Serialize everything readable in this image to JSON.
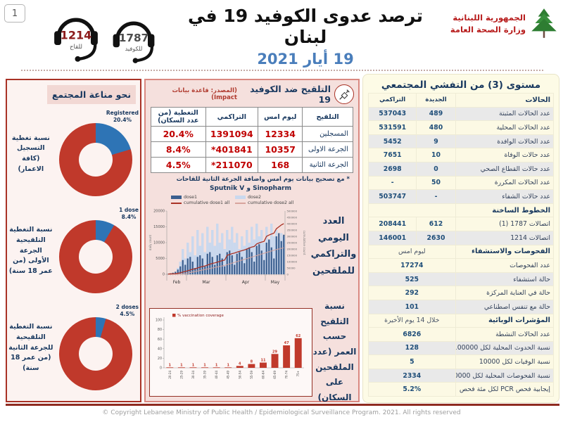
{
  "page": {
    "number": "1",
    "footer": "© Copyright Lebanese Ministry of Public Health / Epidemiological Surveillance Program. 2021. All rights reserved"
  },
  "header": {
    "title": "ترصد عدوى الكوفيد 19 في لبنان",
    "date": "19 أيار 2021",
    "hotline_vaccine": {
      "number": "1214",
      "label": "للقاح"
    },
    "hotline_covid": {
      "number": "1787",
      "label": "للكوفيد"
    },
    "ministry": {
      "line1": "الجمهورية اللبنانية",
      "line2": "وزارة الصحة العامة"
    }
  },
  "immunity_panel": {
    "title": "نحو مناعة المجتمع"
  },
  "vaccination": {
    "title": "التلقيح ضد الكوفيد 19",
    "source": "(المصدر: قاعدة بيانات Impact)",
    "table": {
      "headers": [
        "التلقيح",
        "ليوم امس",
        "التراكمي",
        "التغطية (من عدد السكان)"
      ],
      "rows": [
        {
          "label": "المسجلين",
          "yesterday": "12334",
          "cumulative": "1391094",
          "coverage": "20.4%"
        },
        {
          "label": "الجرعة الاولى",
          "yesterday": "10357",
          "cumulative": "401841*",
          "coverage": "8.4%"
        },
        {
          "label": "الجرعة الثانية",
          "yesterday": "168",
          "cumulative": "211070*",
          "coverage": "4.5%"
        }
      ]
    },
    "footnote_ar": "* مع تصحيح بيانات يوم امس واضافة الجرعة الثانية للقاحات",
    "footnote_en": "Sputnik V و Sinopharm"
  },
  "right_panel": {
    "title": "مستوى (3) من التفشي المجتمعي",
    "col_headers": {
      "label": "الحالات",
      "new": "الجديدة",
      "cumulative": "التراكمي"
    },
    "sections": [
      {
        "rows": [
          {
            "label": "عدد الحالات المثبتة",
            "new": "489",
            "cum": "537043"
          },
          {
            "label": "عدد الحالات المحلية",
            "new": "480",
            "cum": "531591"
          },
          {
            "label": "عدد الحالات الوافدة",
            "new": "9",
            "cum": "5452"
          },
          {
            "label": "عدد حالات الوفاة",
            "new": "10",
            "cum": "7651"
          },
          {
            "label": "عدد حالات القطاع الصحي",
            "new": "0",
            "cum": "2698"
          },
          {
            "label": "عدد الحالات المكررة",
            "new": "50",
            "cum": "-"
          },
          {
            "label": "عدد حالات الشفاء",
            "new": "-",
            "cum": "503747"
          }
        ]
      },
      {
        "header": "الخطوط الساخنة",
        "rows": [
          {
            "label": "اتصالات 1787 (1)",
            "new": "612",
            "cum": "208441"
          },
          {
            "label": "اتصالات 1214",
            "new": "2630",
            "cum": "146001"
          }
        ]
      },
      {
        "header": "الفحوصات والاستشفاء",
        "subheader": "ليوم امس",
        "rows": [
          {
            "label": "عدد الفحوصات",
            "value": "17274"
          },
          {
            "label": "حالة استشفاء",
            "value": "525"
          },
          {
            "label": "حالة في العناية المركزة",
            "value": "292"
          },
          {
            "label": "حالة مع تنفس اصطناعي",
            "value": "101"
          }
        ]
      },
      {
        "header": "المؤشرات الوبائية",
        "subheader": "خلال 14 يوم الأخيرة",
        "rows": [
          {
            "label": "عدد الحالات النشطة",
            "value": "6826"
          },
          {
            "label": "نسبة الحدوث المحلية لكل 100000",
            "value": "128"
          },
          {
            "label": "نسبة الوفيات لكل 10000",
            "value": "5"
          },
          {
            "label": "نسبة الفحوصات المحلية لكل 100000",
            "value": "2334"
          },
          {
            "label": "إيجابية فحص PCR لكل مئة فحص",
            "value": "5.2%"
          }
        ]
      }
    ]
  },
  "chart_data": [
    {
      "type": "donut",
      "label_ar": "نسبة تغطية التسجيل (كافة الاعمار)",
      "series_label": "Registered",
      "value_pct": 20.4,
      "value_label": "20.4%",
      "covered_color": "#2e74b5",
      "rest_color": "#c0392b"
    },
    {
      "type": "donut",
      "label_ar": "نسبة التغطية التلقيحية الجرعة الأولى (من عمر 18 سنة)",
      "series_label": "1 dose",
      "value_pct": 8.4,
      "value_label": "8.4%",
      "covered_color": "#2e74b5",
      "rest_color": "#c0392b"
    },
    {
      "type": "donut",
      "label_ar": "نسبة التغطية التلقيحية للجرعة الثانية (من عمر 18 سنة)",
      "series_label": "2 doses",
      "value_pct": 4.5,
      "value_label": "4.5%",
      "covered_color": "#2e74b5",
      "rest_color": "#c0392b"
    },
    {
      "type": "combo",
      "title_ar": "العدد اليومي والتراكمي للملقحين",
      "legend": [
        {
          "label": "dose1",
          "swatch": "bar-dark"
        },
        {
          "label": "dose2",
          "swatch": "bar-light"
        },
        {
          "label": "cumulative dose1 all",
          "swatch": "line-red"
        },
        {
          "label": "cumulative dose2 all",
          "swatch": "line-pink"
        }
      ],
      "left_axis": {
        "title": "daily count",
        "max": 20000,
        "ticks": [
          0,
          5000,
          10000,
          15000,
          20000
        ]
      },
      "right_axis": {
        "title": "cumulative count",
        "max": 500000,
        "tick_step": 50000
      },
      "months": [
        {
          "label": "Feb",
          "from": 0,
          "to": 7
        },
        {
          "label": "Mar",
          "from": 8,
          "to": 23
        },
        {
          "label": "Apr",
          "from": 24,
          "to": 39
        },
        {
          "label": "May",
          "from": 40,
          "to": 47
        }
      ],
      "series": {
        "dose1": [
          100,
          300,
          500,
          800,
          1500,
          2500,
          4500,
          3000,
          5000,
          5500,
          4000,
          2000,
          5500,
          6000,
          5000,
          2500,
          6500,
          7000,
          5500,
          3000,
          6000,
          6500,
          5000,
          2500,
          7000,
          7500,
          6000,
          3000,
          6500,
          7000,
          5500,
          3500,
          8000,
          8500,
          7000,
          4000,
          9000,
          9500,
          7500,
          4500,
          10000,
          11000,
          8500,
          5000,
          12000,
          13000,
          10500,
          12500
        ],
        "dose2": [
          0,
          0,
          0,
          0,
          2000,
          4000,
          8000,
          5000,
          10000,
          7000,
          12000,
          6000,
          14000,
          9000,
          13000,
          7000,
          15000,
          10000,
          14000,
          9000,
          16000,
          10000,
          13000,
          8000,
          14000,
          11000,
          15000,
          10000,
          13000,
          8000,
          12000,
          9000,
          14000,
          10000,
          15000,
          11000,
          16000,
          12000,
          14000,
          10000,
          15000,
          11000,
          16000,
          12000,
          14000,
          11000,
          13000,
          12000
        ],
        "cum_dose1": [
          2000,
          3000,
          4000,
          5000,
          8000,
          12000,
          18000,
          22000,
          28000,
          34000,
          40000,
          44000,
          50000,
          56000,
          62000,
          66000,
          73000,
          80000,
          86000,
          90000,
          96000,
          102000,
          108000,
          112000,
          150000,
          156000,
          163000,
          168000,
          175000,
          181000,
          187000,
          192000,
          200000,
          208000,
          215000,
          220000,
          240000,
          248000,
          255000,
          260000,
          300000,
          310000,
          318000,
          325000,
          360000,
          375000,
          390000,
          400000
        ],
        "cum_dose2": [
          0,
          0,
          0,
          0,
          0,
          2000,
          4000,
          6000,
          10000,
          14000,
          18000,
          22000,
          26000,
          30000,
          34000,
          38000,
          42000,
          46000,
          50000,
          54000,
          58000,
          62000,
          66000,
          70000,
          76000,
          82000,
          88000,
          94000,
          100000,
          106000,
          112000,
          118000,
          124000,
          130000,
          136000,
          142000,
          148000,
          154000,
          160000,
          166000,
          172000,
          178000,
          184000,
          190000,
          196000,
          200000,
          205000,
          210000
        ]
      },
      "colors": {
        "dose1": "#3b5f8f",
        "dose2": "#c9d8ee",
        "cum_dose1": "#a93226",
        "cum_dose2": "#d8a49d"
      }
    },
    {
      "type": "bar",
      "title_ar": "نسبة التلقيح حسب العمر (عدد الملقحين على السكان)",
      "legend": "% vaccination coverage",
      "categories": [
        "20-24",
        "25-29",
        "30-34",
        "35-39",
        "40-44",
        "45-49",
        "50-54",
        "55-59",
        "60-64",
        "65-69",
        "70-74",
        "75+"
      ],
      "values": [
        1,
        1,
        1,
        1,
        1,
        1,
        4,
        8,
        11,
        29,
        47,
        62
      ],
      "ylim": [
        0,
        100
      ],
      "yticks": [
        0,
        20,
        40,
        60,
        80,
        100
      ],
      "bar_color": "#c0392b"
    }
  ]
}
